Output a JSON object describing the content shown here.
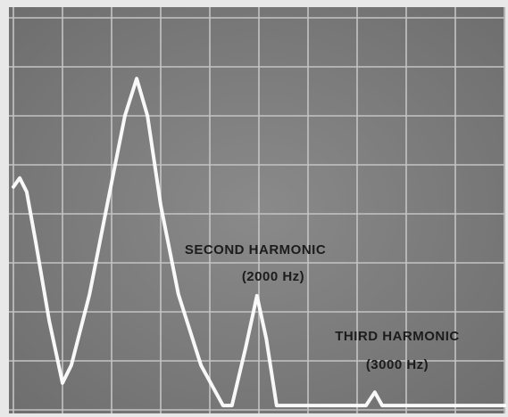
{
  "chart_data": {
    "type": "line",
    "annotations": [
      "SECOND HARMONIC",
      "(2000 Hz)",
      "THIRD HARMONIC",
      "(3000 Hz)"
    ],
    "x": [
      0,
      0.13,
      0.27,
      0.45,
      0.73,
      1.0,
      1.18,
      1.55,
      1.91,
      2.27,
      2.51,
      2.73,
      3.0,
      3.36,
      3.82,
      4.27,
      4.45,
      4.73,
      4.96,
      5.15,
      5.36,
      7.18,
      7.36,
      7.51,
      10
    ],
    "series": [
      {
        "color": "#ffffff",
        "values": [
          4.55,
          4.73,
          4.45,
          3.45,
          1.82,
          0.55,
          0.91,
          2.36,
          4.18,
          6.0,
          6.76,
          6.0,
          4.18,
          2.36,
          0.91,
          0.09,
          0.09,
          1.27,
          2.33,
          1.45,
          0.09,
          0.09,
          0.36,
          0.09,
          0.09
        ]
      }
    ],
    "xlim": [
      0,
      10
    ],
    "ylim": [
      0,
      8
    ],
    "xticks": [
      0,
      1,
      2,
      3,
      4,
      5,
      6,
      7,
      8,
      9,
      10
    ],
    "yticks": [
      0,
      1,
      2,
      3,
      4,
      5,
      6,
      7,
      8
    ],
    "grid": true
  }
}
